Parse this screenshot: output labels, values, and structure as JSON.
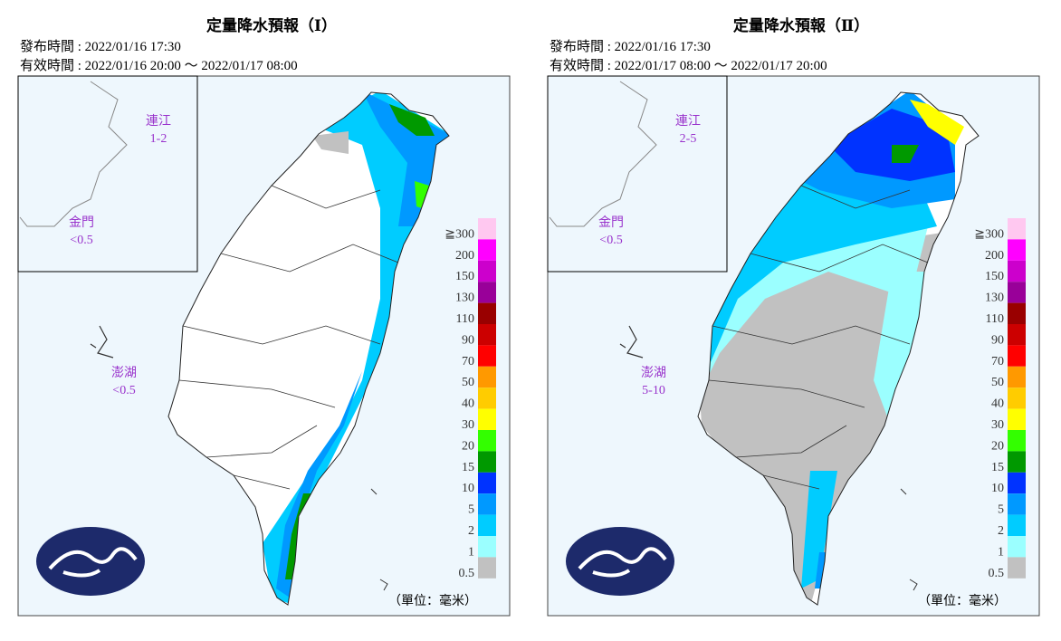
{
  "panels": [
    {
      "title": "定量降水預報（Ⅰ）",
      "issued": "發布時間 : 2022/01/16 17:30",
      "valid": "有效時間 : 2022/01/16 20:00 ～ 2022/01/17 08:00",
      "areas": [
        {
          "name": "連江",
          "value": "1-2"
        },
        {
          "name": "金門",
          "value": "<0.5"
        },
        {
          "name": "澎湖",
          "value": "<0.5"
        }
      ],
      "unit": "（單位：毫米）"
    },
    {
      "title": "定量降水預報（Ⅱ）",
      "issued": "發布時間 : 2022/01/16 17:30",
      "valid": "有效時間 : 2022/01/17 08:00 ～ 2022/01/17 20:00",
      "areas": [
        {
          "name": "連江",
          "value": "2-5"
        },
        {
          "name": "金門",
          "value": "<0.5"
        },
        {
          "name": "澎湖",
          "value": "5-10"
        }
      ],
      "unit": "（單位：毫米）"
    }
  ],
  "legend": {
    "labels": [
      "≧300",
      "200",
      "150",
      "130",
      "110",
      "90",
      "70",
      "50",
      "40",
      "30",
      "20",
      "15",
      "10",
      "5",
      "2",
      "1",
      "0.5"
    ],
    "colors": [
      "#ffc8f0",
      "#ff00ff",
      "#cc00cc",
      "#990099",
      "#990000",
      "#cc0000",
      "#ff0000",
      "#ff9900",
      "#ffcc00",
      "#ffff00",
      "#33ff00",
      "#009900",
      "#0033ff",
      "#0099ff",
      "#00ccff",
      "#9bffff",
      "#c1c1c1"
    ]
  }
}
